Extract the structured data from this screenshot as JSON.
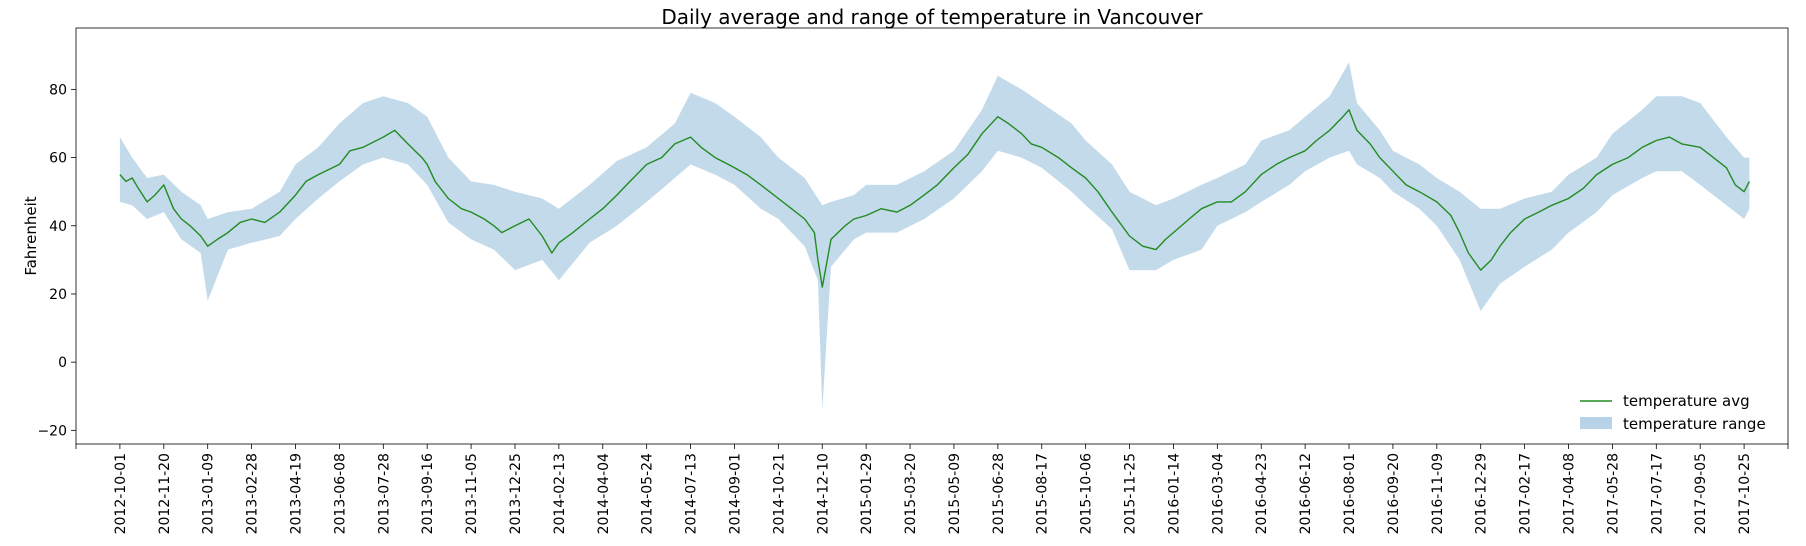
{
  "chart_data": {
    "type": "line",
    "title": "Daily average and range of temperature in Vancouver",
    "xlabel": "",
    "ylabel": "Fahrenheit",
    "x_start": "2012-10-01",
    "x_end": "2017-10-31",
    "xlim": [
      "2012-08-12",
      "2017-12-14"
    ],
    "ylim": [
      -24,
      98
    ],
    "yticks": [
      -20,
      0,
      20,
      40,
      60,
      80
    ],
    "xticks": [
      "2012-10-01",
      "2012-11-20",
      "2013-01-09",
      "2013-02-28",
      "2013-04-19",
      "2013-06-08",
      "2013-07-28",
      "2013-09-16",
      "2013-11-05",
      "2013-12-25",
      "2014-02-13",
      "2014-04-04",
      "2014-05-24",
      "2014-07-13",
      "2014-09-01",
      "2014-10-21",
      "2014-12-10",
      "2015-01-29",
      "2015-03-20",
      "2015-05-09",
      "2015-06-28",
      "2015-08-17",
      "2015-10-06",
      "2015-11-25",
      "2016-01-14",
      "2016-03-04",
      "2016-04-23",
      "2016-06-12",
      "2016-08-01",
      "2016-09-20",
      "2016-11-09",
      "2016-12-29",
      "2017-02-17",
      "2017-04-08",
      "2017-05-28",
      "2017-07-17",
      "2017-09-05",
      "2017-10-25"
    ],
    "grid": false,
    "legend_position": "lower-right",
    "series": [
      {
        "name": "temperature avg",
        "kind": "line",
        "color": "#228b22",
        "x": [
          "2012-10-01",
          "2012-10-08",
          "2012-10-15",
          "2012-10-22",
          "2012-11-01",
          "2012-11-10",
          "2012-11-20",
          "2012-12-01",
          "2012-12-10",
          "2012-12-20",
          "2013-01-01",
          "2013-01-09",
          "2013-01-20",
          "2013-02-01",
          "2013-02-15",
          "2013-02-28",
          "2013-03-15",
          "2013-04-01",
          "2013-04-19",
          "2013-05-01",
          "2013-05-15",
          "2013-06-08",
          "2013-06-20",
          "2013-07-05",
          "2013-07-28",
          "2013-08-10",
          "2013-08-25",
          "2013-09-10",
          "2013-09-16",
          "2013-09-25",
          "2013-10-10",
          "2013-10-25",
          "2013-11-05",
          "2013-11-20",
          "2013-12-01",
          "2013-12-10",
          "2013-12-25",
          "2014-01-10",
          "2014-01-25",
          "2014-02-05",
          "2014-02-13",
          "2014-03-01",
          "2014-03-20",
          "2014-04-04",
          "2014-04-20",
          "2014-05-05",
          "2014-05-24",
          "2014-06-10",
          "2014-06-25",
          "2014-07-13",
          "2014-07-25",
          "2014-08-10",
          "2014-08-25",
          "2014-09-01",
          "2014-09-15",
          "2014-10-01",
          "2014-10-21",
          "2014-11-05",
          "2014-11-20",
          "2014-12-01",
          "2014-12-05",
          "2014-12-10",
          "2014-12-20",
          "2015-01-05",
          "2015-01-15",
          "2015-01-29",
          "2015-02-15",
          "2015-03-05",
          "2015-03-20",
          "2015-04-05",
          "2015-04-20",
          "2015-05-09",
          "2015-05-25",
          "2015-06-10",
          "2015-06-28",
          "2015-07-10",
          "2015-07-25",
          "2015-08-05",
          "2015-08-17",
          "2015-09-05",
          "2015-09-20",
          "2015-10-06",
          "2015-10-20",
          "2015-11-05",
          "2015-11-25",
          "2015-12-10",
          "2015-12-25",
          "2016-01-05",
          "2016-01-14",
          "2016-02-01",
          "2016-02-15",
          "2016-03-04",
          "2016-03-20",
          "2016-04-05",
          "2016-04-23",
          "2016-05-10",
          "2016-05-25",
          "2016-06-12",
          "2016-06-25",
          "2016-07-10",
          "2016-07-25",
          "2016-08-01",
          "2016-08-10",
          "2016-08-25",
          "2016-09-05",
          "2016-09-20",
          "2016-10-05",
          "2016-10-20",
          "2016-11-09",
          "2016-11-25",
          "2016-12-05",
          "2016-12-15",
          "2016-12-29",
          "2017-01-10",
          "2017-01-20",
          "2017-02-01",
          "2017-02-17",
          "2017-03-05",
          "2017-03-20",
          "2017-04-08",
          "2017-04-25",
          "2017-05-10",
          "2017-05-28",
          "2017-06-15",
          "2017-07-01",
          "2017-07-17",
          "2017-08-01",
          "2017-08-15",
          "2017-09-05",
          "2017-09-20",
          "2017-10-05",
          "2017-10-15",
          "2017-10-25",
          "2017-10-31"
        ],
        "y": [
          55,
          53,
          54,
          51,
          47,
          49,
          52,
          45,
          42,
          40,
          37,
          34,
          36,
          38,
          41,
          42,
          41,
          44,
          49,
          53,
          55,
          58,
          62,
          63,
          66,
          68,
          64,
          60,
          58,
          53,
          48,
          45,
          44,
          42,
          40,
          38,
          40,
          42,
          37,
          32,
          35,
          38,
          42,
          45,
          49,
          53,
          58,
          60,
          64,
          66,
          63,
          60,
          58,
          57,
          55,
          52,
          48,
          45,
          42,
          38,
          30,
          22,
          36,
          40,
          42,
          43,
          45,
          44,
          46,
          49,
          52,
          57,
          61,
          67,
          72,
          70,
          67,
          64,
          63,
          60,
          57,
          54,
          50,
          44,
          37,
          34,
          33,
          36,
          38,
          42,
          45,
          47,
          47,
          50,
          55,
          58,
          60,
          62,
          65,
          68,
          72,
          74,
          68,
          64,
          60,
          56,
          52,
          50,
          47,
          43,
          38,
          32,
          27,
          30,
          34,
          38,
          42,
          44,
          46,
          48,
          51,
          55,
          58,
          60,
          63,
          65,
          66,
          64,
          63,
          60,
          57,
          52,
          50,
          53
        ]
      },
      {
        "name": "temperature range",
        "kind": "band",
        "color": "#b8d3e8",
        "x": [
          "2012-10-01",
          "2012-10-15",
          "2012-11-01",
          "2012-11-20",
          "2012-12-10",
          "2013-01-01",
          "2013-01-09",
          "2013-02-01",
          "2013-02-28",
          "2013-04-01",
          "2013-04-19",
          "2013-05-15",
          "2013-06-08",
          "2013-07-05",
          "2013-07-28",
          "2013-08-25",
          "2013-09-16",
          "2013-10-10",
          "2013-11-05",
          "2013-12-01",
          "2013-12-25",
          "2014-01-25",
          "2014-02-13",
          "2014-03-20",
          "2014-04-20",
          "2014-05-24",
          "2014-06-25",
          "2014-07-13",
          "2014-08-10",
          "2014-09-01",
          "2014-10-01",
          "2014-10-21",
          "2014-11-20",
          "2014-12-05",
          "2014-12-10",
          "2014-12-20",
          "2015-01-15",
          "2015-01-29",
          "2015-03-05",
          "2015-04-05",
          "2015-05-09",
          "2015-06-10",
          "2015-06-28",
          "2015-07-25",
          "2015-08-17",
          "2015-09-20",
          "2015-10-06",
          "2015-11-05",
          "2015-11-25",
          "2015-12-25",
          "2016-01-14",
          "2016-02-15",
          "2016-03-04",
          "2016-04-05",
          "2016-04-23",
          "2016-05-25",
          "2016-06-12",
          "2016-07-10",
          "2016-08-01",
          "2016-08-10",
          "2016-09-05",
          "2016-09-20",
          "2016-10-20",
          "2016-11-09",
          "2016-12-05",
          "2016-12-29",
          "2017-01-20",
          "2017-02-17",
          "2017-03-20",
          "2017-04-08",
          "2017-05-10",
          "2017-05-28",
          "2017-07-01",
          "2017-07-17",
          "2017-08-15",
          "2017-09-05",
          "2017-10-05",
          "2017-10-25",
          "2017-10-31"
        ],
        "low": [
          47,
          46,
          42,
          44,
          36,
          32,
          18,
          33,
          35,
          37,
          42,
          48,
          53,
          58,
          60,
          58,
          52,
          41,
          36,
          33,
          27,
          30,
          24,
          35,
          40,
          47,
          54,
          58,
          55,
          52,
          45,
          42,
          34,
          24,
          -14,
          28,
          36,
          38,
          38,
          42,
          48,
          56,
          62,
          60,
          57,
          50,
          46,
          39,
          27,
          27,
          30,
          33,
          40,
          44,
          47,
          52,
          56,
          60,
          62,
          58,
          54,
          50,
          45,
          40,
          30,
          15,
          23,
          28,
          33,
          38,
          44,
          49,
          54,
          56,
          56,
          52,
          46,
          42,
          45
        ],
        "high": [
          66,
          60,
          54,
          55,
          50,
          46,
          42,
          44,
          45,
          50,
          58,
          63,
          70,
          76,
          78,
          76,
          72,
          60,
          53,
          52,
          50,
          48,
          45,
          52,
          59,
          63,
          70,
          79,
          76,
          72,
          66,
          60,
          54,
          48,
          46,
          47,
          49,
          52,
          52,
          56,
          62,
          74,
          84,
          80,
          76,
          70,
          65,
          58,
          50,
          46,
          48,
          52,
          54,
          58,
          65,
          68,
          72,
          78,
          88,
          76,
          68,
          62,
          58,
          54,
          50,
          45,
          45,
          48,
          50,
          55,
          60,
          67,
          74,
          78,
          78,
          76,
          66,
          60,
          60
        ]
      }
    ]
  }
}
